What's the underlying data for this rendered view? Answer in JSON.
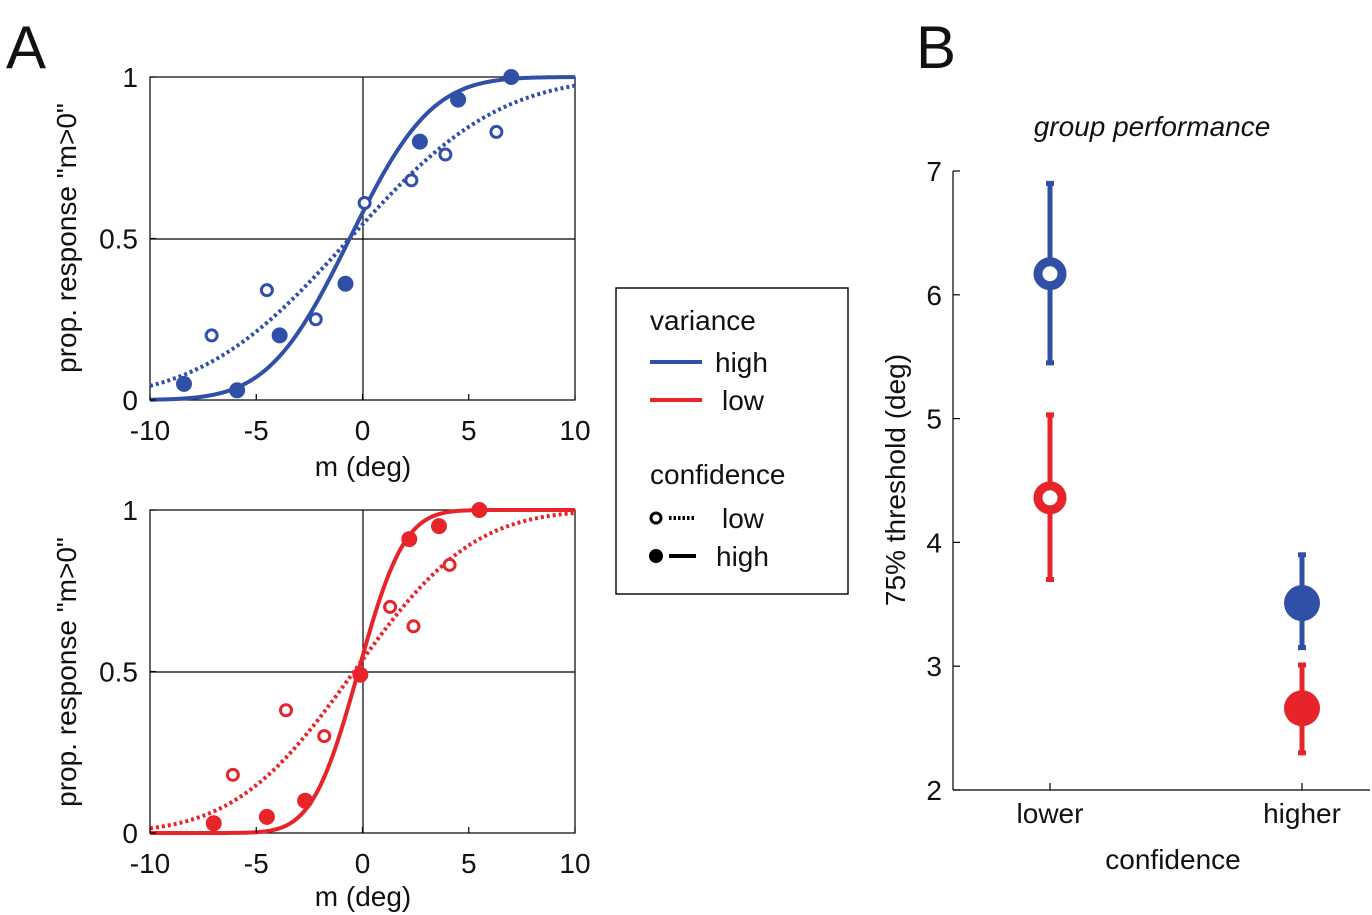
{
  "figure": {
    "panel_a_letter": "A",
    "panel_b_letter": "B"
  },
  "chart_data": [
    {
      "id": "psychometric-high-variance",
      "type": "scatter",
      "xlabel": "m (deg)",
      "ylabel": "prop. response \"m>0\"",
      "xlim": [
        -10,
        10
      ],
      "ylim": [
        0,
        1
      ],
      "x_ticks": [
        "-10",
        "-5",
        "0",
        "5",
        "10"
      ],
      "y_ticks": [
        "0",
        "0.5",
        "1"
      ],
      "reference_lines": {
        "x": 0,
        "y": 0.5
      },
      "color": "#3050a8",
      "series": [
        {
          "confidence": "high",
          "marker": "filled",
          "line": "solid",
          "x": [
            -8.4,
            -5.9,
            -3.9,
            -0.8,
            2.7,
            4.5,
            7.0
          ],
          "y": [
            0.05,
            0.03,
            0.2,
            0.36,
            0.8,
            0.93,
            1.0
          ],
          "fit": {
            "mu": -0.6,
            "sigma": 3.0
          }
        },
        {
          "confidence": "low",
          "marker": "open",
          "line": "dotted",
          "x": [
            -7.1,
            -4.5,
            -2.2,
            0.1,
            2.3,
            3.9,
            6.3
          ],
          "y": [
            0.2,
            0.34,
            0.25,
            0.61,
            0.68,
            0.76,
            0.83
          ],
          "fit": {
            "mu": -0.6,
            "sigma": 5.5
          }
        }
      ]
    },
    {
      "id": "psychometric-low-variance",
      "type": "scatter",
      "xlabel": "m (deg)",
      "ylabel": "prop. response \"m>0\"",
      "xlim": [
        -10,
        10
      ],
      "ylim": [
        0,
        1
      ],
      "x_ticks": [
        "-10",
        "-5",
        "0",
        "5",
        "10"
      ],
      "y_ticks": [
        "0",
        "0.5",
        "1"
      ],
      "reference_lines": {
        "x": 0,
        "y": 0.5
      },
      "color": "#e8242b",
      "series": [
        {
          "confidence": "high",
          "marker": "filled",
          "line": "solid",
          "x": [
            -7.0,
            -4.5,
            -2.7,
            -0.1,
            2.2,
            3.6,
            5.5
          ],
          "y": [
            0.03,
            0.05,
            0.1,
            0.49,
            0.91,
            0.95,
            1.0
          ],
          "fit": {
            "mu": -0.2,
            "sigma": 1.7
          }
        },
        {
          "confidence": "low",
          "marker": "open",
          "line": "dotted",
          "x": [
            -6.1,
            -3.6,
            -1.8,
            1.3,
            2.4,
            4.1
          ],
          "y": [
            0.18,
            0.38,
            0.3,
            0.7,
            0.64,
            0.83
          ],
          "fit": {
            "mu": -0.4,
            "sigma": 4.4
          }
        }
      ]
    },
    {
      "id": "group-performance",
      "type": "scatter",
      "title": "group performance",
      "xlabel": "confidence",
      "ylabel": "75% threshold (deg)",
      "categories": [
        "lower",
        "higher"
      ],
      "ylim": [
        2,
        7
      ],
      "y_ticks": [
        "2",
        "3",
        "4",
        "5",
        "6",
        "7"
      ],
      "series": [
        {
          "variance": "high",
          "color": "#3050a8",
          "values": [
            6.17,
            3.51
          ],
          "errors": [
            [
              5.45,
              6.9
            ],
            [
              3.15,
              3.9
            ]
          ],
          "markers": [
            "open",
            "filled"
          ]
        },
        {
          "variance": "low",
          "color": "#e8242b",
          "values": [
            4.36,
            2.66
          ],
          "errors": [
            [
              3.7,
              5.03
            ],
            [
              2.3,
              3.01
            ]
          ],
          "markers": [
            "open",
            "filled"
          ]
        }
      ]
    }
  ],
  "legend": {
    "variance_title": "variance",
    "variance_items": [
      {
        "label": "high",
        "color": "#3050a8"
      },
      {
        "label": "low",
        "color": "#e8242b"
      }
    ],
    "confidence_title": "confidence",
    "confidence_items": [
      {
        "label": "low",
        "marker": "open",
        "line": "dotted"
      },
      {
        "label": "high",
        "marker": "filled",
        "line": "solid"
      }
    ]
  }
}
